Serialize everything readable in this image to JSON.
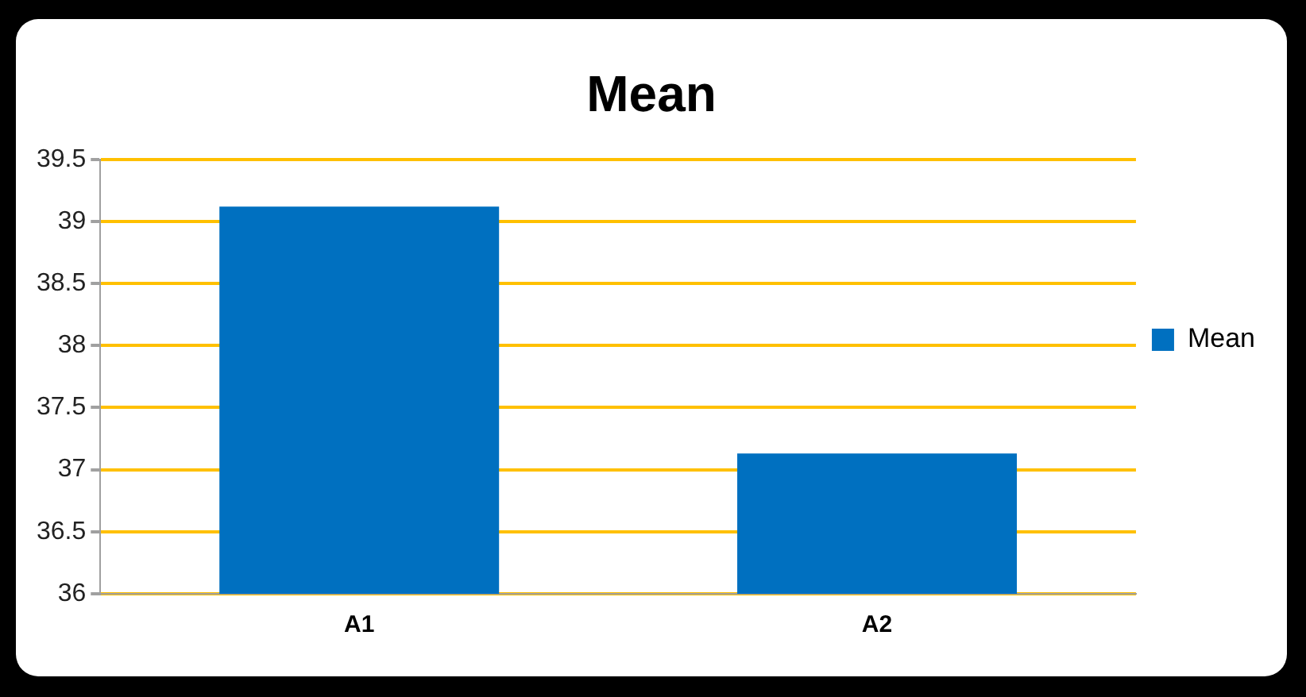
{
  "chart_data": {
    "type": "bar",
    "title": "Mean",
    "categories": [
      "A1",
      "A2"
    ],
    "series": [
      {
        "name": "Mean",
        "color": "#0070c0",
        "values": [
          39.12,
          37.13
        ]
      }
    ],
    "ylim": [
      36,
      39.5
    ],
    "yticks": [
      36,
      36.5,
      37,
      37.5,
      38,
      38.5,
      39,
      39.5
    ],
    "grid": "y",
    "legend": "right"
  }
}
